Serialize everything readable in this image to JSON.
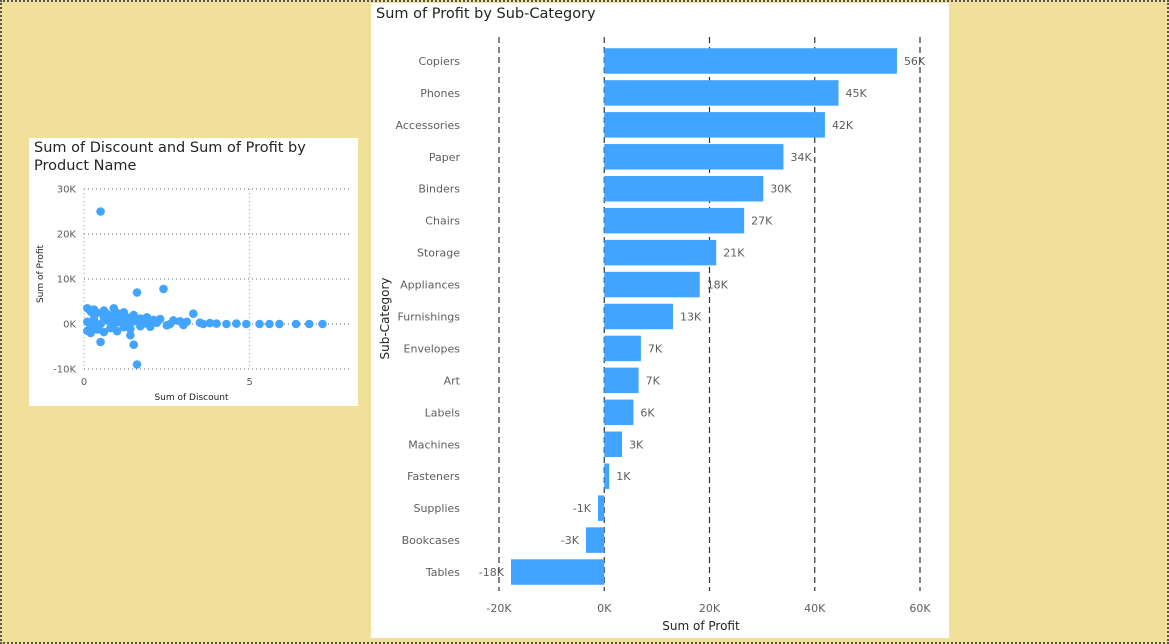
{
  "colors": {
    "background": "#F0E09A",
    "visual": "#FFFFFF",
    "series": "#41A4FF",
    "grid": "#333333"
  },
  "chart_data": [
    {
      "type": "scatter",
      "title": "Sum of Discount and Sum of Profit by Product Name",
      "xlabel": "Sum of Discount",
      "ylabel": "Sum of Profit",
      "xlim": [
        0,
        8
      ],
      "ylim": [
        -10000,
        30000
      ],
      "x_ticks": [
        {
          "v": 0,
          "label": "0"
        },
        {
          "v": 5,
          "label": "5"
        }
      ],
      "y_ticks": [
        {
          "v": 30000,
          "label": "30K"
        },
        {
          "v": 20000,
          "label": "20K"
        },
        {
          "v": 10000,
          "label": "10K"
        },
        {
          "v": 0,
          "label": "0K"
        },
        {
          "v": -10000,
          "label": "-10K"
        }
      ],
      "grid": true,
      "points": [
        [
          0.5,
          25000
        ],
        [
          1.6,
          7000
        ],
        [
          2.4,
          7800
        ],
        [
          1.6,
          -9000
        ],
        [
          0.5,
          -4000
        ],
        [
          1.5,
          -4600
        ],
        [
          1.4,
          -2500
        ],
        [
          0.1,
          3500
        ],
        [
          0.2,
          2800
        ],
        [
          0.3,
          3200
        ],
        [
          0.4,
          2500
        ],
        [
          0.6,
          3000
        ],
        [
          0.7,
          2200
        ],
        [
          0.9,
          3500
        ],
        [
          1.0,
          2400
        ],
        [
          1.1,
          1800
        ],
        [
          1.2,
          2600
        ],
        [
          1.3,
          1500
        ],
        [
          1.5,
          2000
        ],
        [
          1.7,
          1200
        ],
        [
          1.9,
          1500
        ],
        [
          2.1,
          900
        ],
        [
          2.3,
          1100
        ],
        [
          2.7,
          800
        ],
        [
          2.9,
          600
        ],
        [
          3.3,
          2300
        ],
        [
          3.1,
          500
        ],
        [
          3.5,
          300
        ],
        [
          3.8,
          200
        ],
        [
          4.0,
          100
        ],
        [
          4.3,
          0
        ],
        [
          4.6,
          100
        ],
        [
          4.9,
          0
        ],
        [
          5.3,
          0
        ],
        [
          5.6,
          0
        ],
        [
          5.9,
          0
        ],
        [
          6.4,
          0
        ],
        [
          6.8,
          0
        ],
        [
          7.2,
          0
        ],
        [
          0.1,
          -1500
        ],
        [
          0.2,
          -2000
        ],
        [
          0.4,
          -1200
        ],
        [
          0.6,
          -1800
        ],
        [
          0.8,
          -900
        ],
        [
          1.0,
          -1600
        ],
        [
          1.2,
          -700
        ],
        [
          1.4,
          -1100
        ],
        [
          1.7,
          -500
        ],
        [
          2.0,
          -600
        ],
        [
          2.5,
          -300
        ],
        [
          3.0,
          -200
        ],
        [
          0.1,
          500
        ],
        [
          0.2,
          -500
        ],
        [
          0.3,
          1000
        ],
        [
          0.5,
          0
        ],
        [
          0.7,
          800
        ],
        [
          0.9,
          -300
        ],
        [
          1.1,
          400
        ],
        [
          1.3,
          -200
        ],
        [
          1.5,
          600
        ],
        [
          1.8,
          100
        ],
        [
          2.0,
          -100
        ],
        [
          2.2,
          300
        ],
        [
          2.6,
          0
        ],
        [
          3.6,
          0
        ],
        [
          0.3,
          2000
        ],
        [
          0.6,
          1500
        ],
        [
          0.8,
          1800
        ],
        [
          1.0,
          1000
        ],
        [
          1.2,
          1300
        ],
        [
          1.6,
          900
        ],
        [
          0.4,
          -600
        ],
        [
          0.9,
          1200
        ]
      ]
    },
    {
      "type": "bar",
      "orientation": "horizontal",
      "title": "Sum of Profit by Sub-Category",
      "xlabel": "Sum of Profit",
      "ylabel": "Sub-Category",
      "xlim": [
        -20000,
        60000
      ],
      "grid": true,
      "x_ticks": [
        {
          "v": -20000,
          "label": "-20K"
        },
        {
          "v": 0,
          "label": "0K"
        },
        {
          "v": 20000,
          "label": "20K"
        },
        {
          "v": 40000,
          "label": "40K"
        },
        {
          "v": 60000,
          "label": "60K"
        }
      ],
      "categories": [
        "Copiers",
        "Phones",
        "Accessories",
        "Paper",
        "Binders",
        "Chairs",
        "Storage",
        "Appliances",
        "Furnishings",
        "Envelopes",
        "Art",
        "Labels",
        "Machines",
        "Fasteners",
        "Supplies",
        "Bookcases",
        "Tables"
      ],
      "values": [
        55618,
        44516,
        41937,
        34054,
        30222,
        26590,
        21279,
        18138,
        13059,
        6964,
        6528,
        5546,
        3385,
        950,
        -1189,
        -3473,
        -17725
      ],
      "data_labels": [
        "56K",
        "45K",
        "42K",
        "34K",
        "30K",
        "27K",
        "21K",
        "18K",
        "13K",
        "7K",
        "7K",
        "6K",
        "3K",
        "1K",
        "-1K",
        "-3K",
        "-18K"
      ]
    }
  ]
}
